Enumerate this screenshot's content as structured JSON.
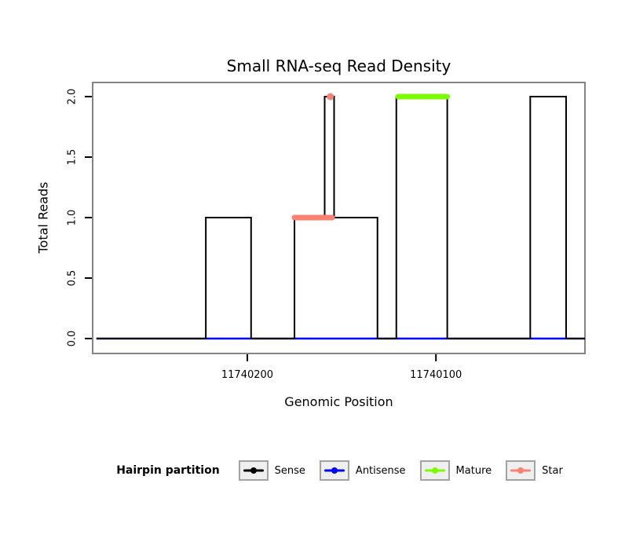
{
  "chart_data": {
    "type": "line",
    "title": "Small RNA-seq Read Density",
    "xlabel": "Genomic Position",
    "ylabel": "Total Reads",
    "x_axis": {
      "reversed": true,
      "left_value": 11740282,
      "right_value": 11740021,
      "ticks": [
        {
          "value": 11740200,
          "label": "11740200"
        },
        {
          "value": 11740100,
          "label": "11740100"
        }
      ]
    },
    "y_axis": {
      "min": 0,
      "max": 2,
      "ticks": [
        {
          "value": 0,
          "label": "0.0"
        },
        {
          "value": 0.5,
          "label": "0.5"
        },
        {
          "value": 1,
          "label": "1.0"
        },
        {
          "value": 1.5,
          "label": "1.5"
        },
        {
          "value": 2,
          "label": "2.0"
        }
      ]
    },
    "series": [
      {
        "name": "Antisense",
        "color": "#0000FF",
        "kind": "line",
        "width": 2.5,
        "points": [
          [
            11740280,
            0
          ],
          [
            11740021,
            0
          ]
        ]
      },
      {
        "name": "Sense",
        "color": "#000000",
        "kind": "step",
        "width": 2,
        "points": [
          [
            11740280,
            0
          ],
          [
            11740222,
            0
          ],
          [
            11740222,
            1
          ],
          [
            11740198,
            1
          ],
          [
            11740198,
            0
          ],
          [
            11740175,
            0
          ],
          [
            11740175,
            1
          ],
          [
            11740159,
            1
          ],
          [
            11740159,
            2
          ],
          [
            11740154,
            2
          ],
          [
            11740154,
            1
          ],
          [
            11740131,
            1
          ],
          [
            11740131,
            0
          ],
          [
            11740121,
            0
          ],
          [
            11740121,
            2
          ],
          [
            11740094,
            2
          ],
          [
            11740094,
            0
          ],
          [
            11740050,
            0
          ],
          [
            11740050,
            2
          ],
          [
            11740031,
            2
          ],
          [
            11740031,
            0
          ],
          [
            11740021,
            0
          ]
        ]
      },
      {
        "name": "Mature",
        "color": "#7CFC00",
        "kind": "segment",
        "width": 7,
        "segments": [
          [
            11740120,
            2,
            11740094,
            2
          ]
        ]
      },
      {
        "name": "Star",
        "color": "#FA8072",
        "kind": "segment",
        "width": 7,
        "segments": [
          [
            11740175,
            1,
            11740155,
            1
          ]
        ],
        "dots": [
          [
            11740156,
            2
          ]
        ]
      }
    ],
    "legend": {
      "title": "Hairpin partition",
      "entries": [
        {
          "label": "Sense",
          "color": "#000000"
        },
        {
          "label": "Antisense",
          "color": "#0000FF"
        },
        {
          "label": "Mature",
          "color": "#7CFC00"
        },
        {
          "label": "Star",
          "color": "#FA8072"
        }
      ]
    }
  }
}
